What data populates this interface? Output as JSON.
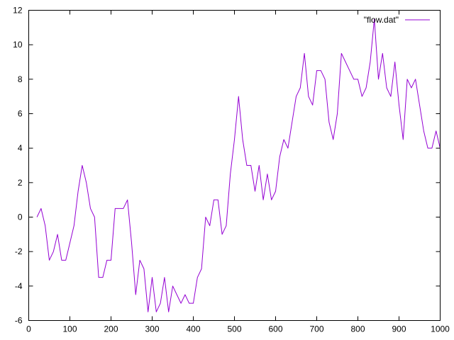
{
  "chart_data": {
    "type": "line",
    "title": "",
    "xlabel": "",
    "ylabel": "",
    "xlim": [
      0,
      1000
    ],
    "ylim": [
      -6,
      12
    ],
    "xticks": [
      0,
      100,
      200,
      300,
      400,
      500,
      600,
      700,
      800,
      900,
      1000
    ],
    "yticks": [
      -6,
      -4,
      -2,
      0,
      2,
      4,
      6,
      8,
      10,
      12
    ],
    "grid": false,
    "legend_position": "top-right",
    "series": [
      {
        "name": "\"flow.dat\"",
        "color": "#9400d3",
        "x": [
          20,
          30,
          40,
          50,
          60,
          70,
          80,
          90,
          100,
          110,
          120,
          130,
          140,
          150,
          160,
          170,
          180,
          190,
          200,
          210,
          220,
          230,
          240,
          250,
          260,
          270,
          280,
          290,
          300,
          310,
          320,
          330,
          340,
          350,
          360,
          370,
          380,
          390,
          400,
          410,
          420,
          430,
          440,
          450,
          460,
          470,
          480,
          490,
          500,
          510,
          520,
          530,
          540,
          550,
          560,
          570,
          580,
          590,
          600,
          610,
          620,
          630,
          640,
          650,
          660,
          670,
          680,
          690,
          700,
          710,
          720,
          730,
          740,
          750,
          760,
          770,
          780,
          790,
          800,
          810,
          820,
          830,
          840,
          850,
          860,
          870,
          880,
          890,
          900,
          910,
          920,
          930,
          940,
          950,
          960,
          970,
          980,
          990,
          1000
        ],
        "y": [
          0,
          0.5,
          -0.5,
          -2.5,
          -2,
          -1,
          -2.5,
          -2.5,
          -1.5,
          -0.5,
          1.5,
          3,
          2,
          0.5,
          0,
          -3.5,
          -3.5,
          -2.5,
          -2.5,
          0.5,
          0.5,
          0.5,
          1,
          -1.5,
          -4.5,
          -2.5,
          -3,
          -5.5,
          -3.5,
          -5.5,
          -5,
          -3.5,
          -5.5,
          -4,
          -4.5,
          -5,
          -4.5,
          -5,
          -5,
          -3.5,
          -3,
          0,
          -0.5,
          1,
          1,
          -1,
          -0.5,
          2.5,
          4.5,
          7,
          4.5,
          3,
          3,
          1.5,
          3,
          1,
          2.5,
          1,
          1.5,
          3.5,
          4.5,
          4,
          5.5,
          7,
          7.5,
          9.5,
          7,
          6.5,
          8.5,
          8.5,
          8,
          5.5,
          4.5,
          6,
          9.5,
          9,
          8.5,
          8,
          8,
          7,
          7.5,
          9,
          11.5,
          8,
          9.5,
          7.5,
          7,
          9,
          6.5,
          4.5,
          8,
          7.5,
          8,
          6.5,
          5,
          4,
          4,
          5,
          4
        ]
      }
    ]
  }
}
